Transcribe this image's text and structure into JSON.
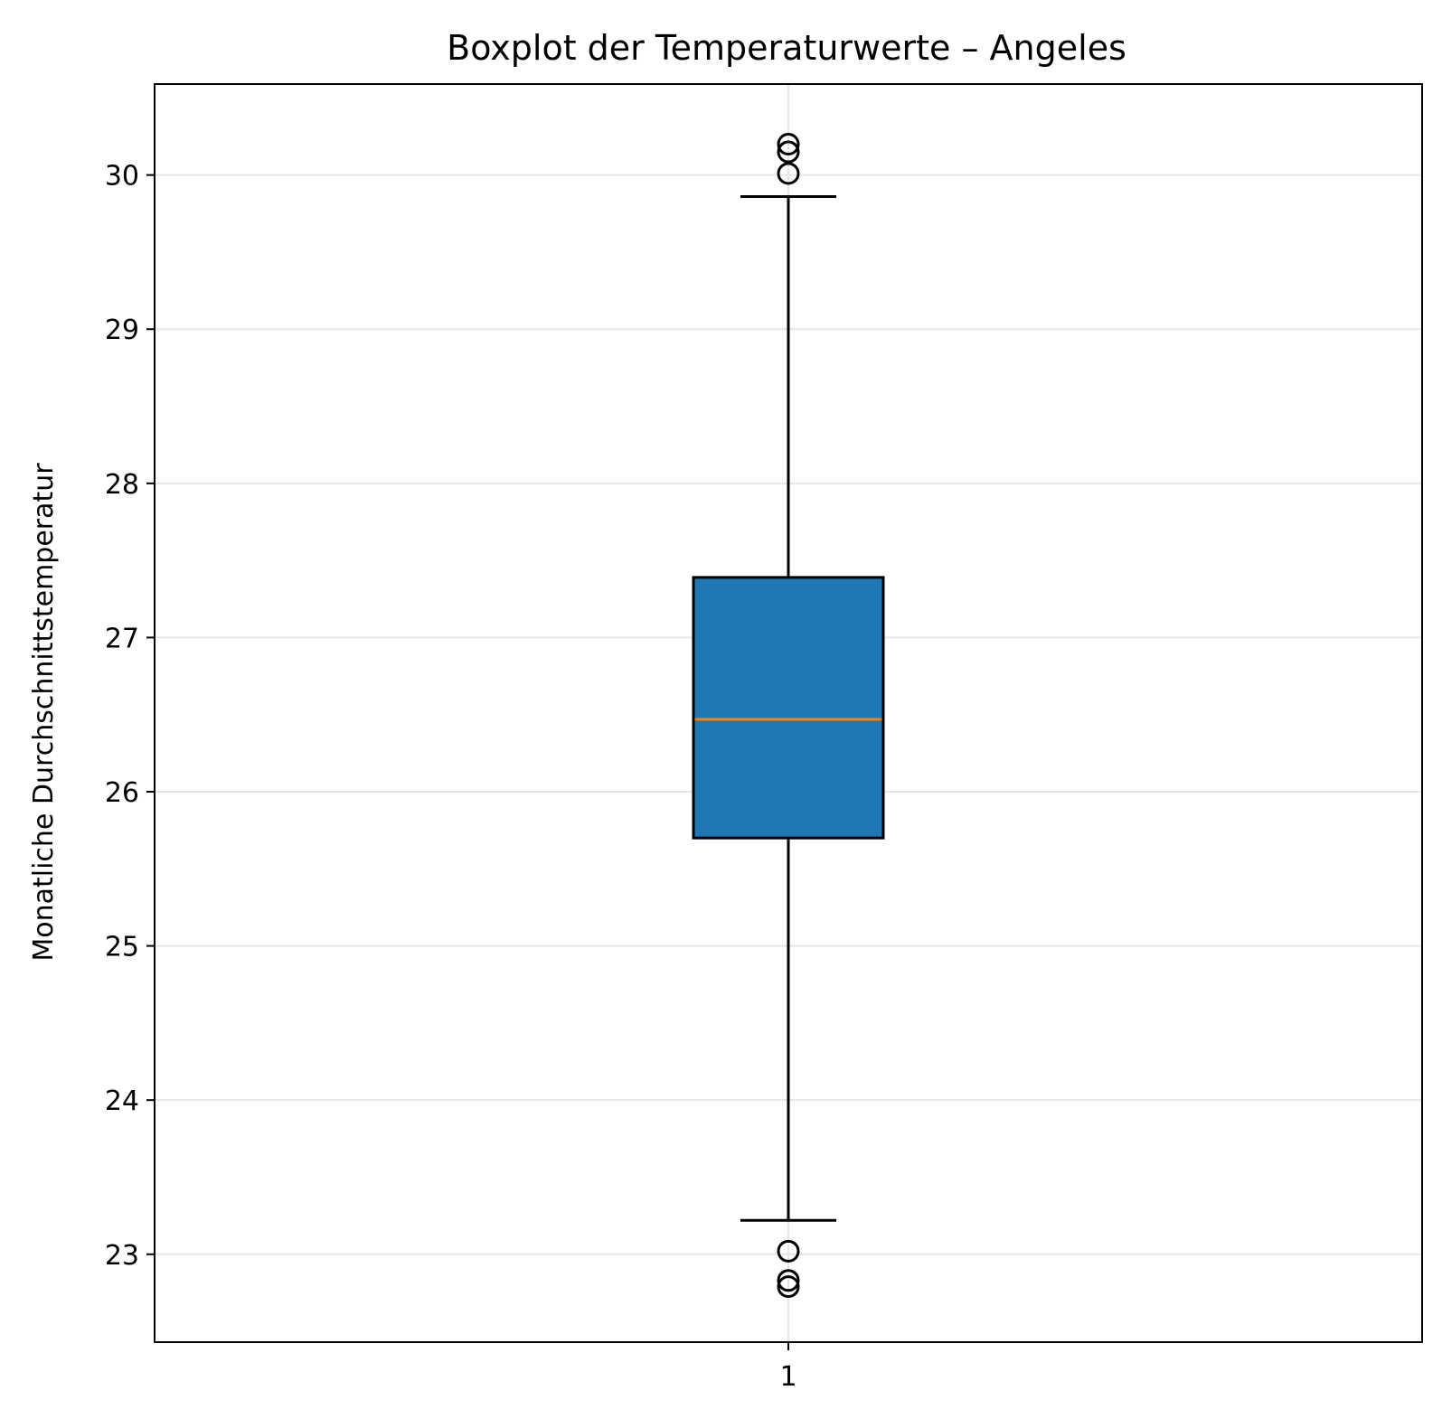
{
  "chart_data": {
    "type": "boxplot",
    "title": "Boxplot der Temperaturwerte – Angeles",
    "xlabel": "",
    "ylabel": "Monatliche Durchschnittstemperatur",
    "categories": [
      "1"
    ],
    "ylim": [
      22.43,
      30.59
    ],
    "yticks": [
      "23",
      "24",
      "25",
      "26",
      "27",
      "28",
      "29",
      "30"
    ],
    "grid": true,
    "boxes": [
      {
        "category": "1",
        "whisker_low": 23.22,
        "q1": 25.7,
        "median": 26.47,
        "q3": 27.39,
        "whisker_high": 29.86,
        "outliers": [
          30.2,
          30.15,
          30.01,
          23.02,
          22.83,
          22.79
        ]
      }
    ],
    "colors": {
      "box_fill": "#1f77b4",
      "median": "#ff7f0e",
      "grid": "#e6e6e6",
      "line": "#000000"
    }
  }
}
